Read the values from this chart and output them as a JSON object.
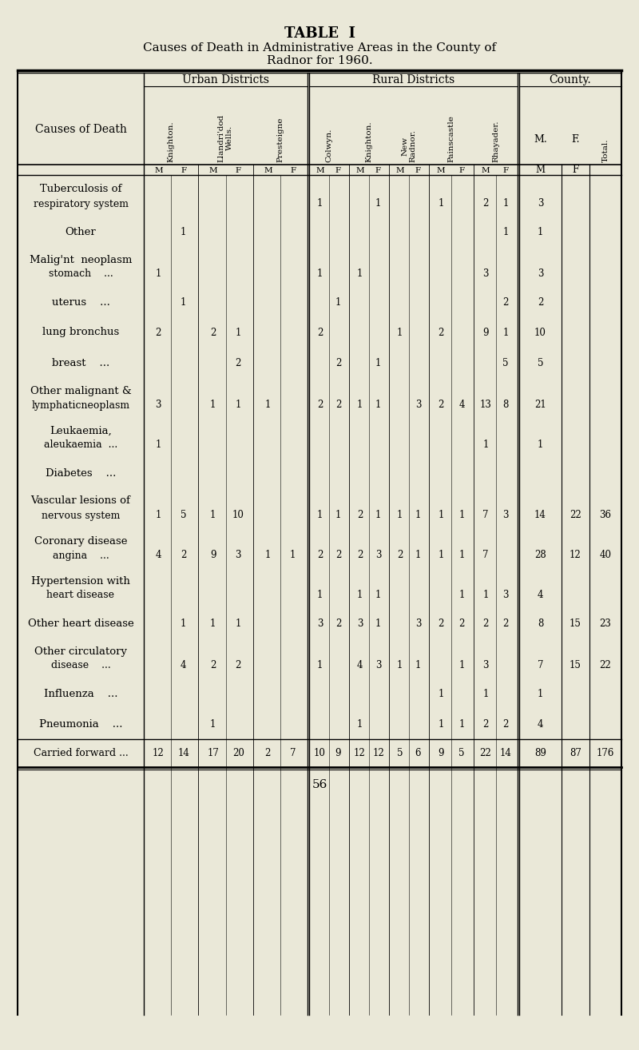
{
  "title_line1": "TABLE  I",
  "title_line2": "Causes of Death in Administrative Areas in the County of",
  "title_line3": "Radnor for 1960.",
  "bg_color": "#eae8d8",
  "rows": [
    {
      "label1": "Tuberculosis of",
      "label2": "respiratory system",
      "data": [
        "",
        "",
        "",
        "",
        "",
        "",
        "1",
        "",
        "",
        "1",
        "",
        "",
        "1",
        "",
        "2",
        "1",
        "3"
      ]
    },
    {
      "label1": "Other",
      "label2": "",
      "data": [
        "",
        "1",
        "",
        "",
        "",
        "",
        "",
        "",
        "",
        "",
        "",
        "",
        "",
        "",
        "",
        "1",
        "1"
      ]
    },
    {
      "label1": "Malig'nt  neoplasm",
      "label2": "stomach    ...",
      "data": [
        "1",
        "",
        "",
        "",
        "",
        "",
        "1",
        "",
        "1",
        "",
        "",
        "",
        "",
        "",
        "3",
        "",
        "3"
      ]
    },
    {
      "label1": "uterus    ...",
      "label2": "",
      "data": [
        "",
        "1",
        "",
        "",
        "",
        "",
        "",
        "1",
        "",
        "",
        "",
        "",
        "",
        "",
        "",
        "2",
        "2"
      ]
    },
    {
      "label1": "lung bronchus",
      "label2": "",
      "data": [
        "2",
        "",
        "2",
        "1",
        "",
        "",
        "2",
        "",
        "",
        "",
        "1",
        "",
        "2",
        "",
        "9",
        "1",
        "10"
      ]
    },
    {
      "label1": "breast    ...",
      "label2": "",
      "data": [
        "",
        "",
        "",
        "2",
        "",
        "",
        "",
        "2",
        "",
        "1",
        "",
        "",
        "",
        "",
        "",
        "5",
        "5"
      ]
    },
    {
      "label1": "Other malignant &",
      "label2": "lymphaticneoplasm",
      "data": [
        "3",
        "",
        "1",
        "1",
        "1",
        "",
        "2",
        "2",
        "1",
        "1",
        "",
        "3",
        "2",
        "4",
        "13",
        "8",
        "21"
      ]
    },
    {
      "label1": "Leukaemia,",
      "label2": "aleukaemia  ...",
      "data": [
        "1",
        "",
        "",
        "",
        "",
        "",
        "",
        "",
        "",
        "",
        "",
        "",
        "",
        "",
        "1",
        "",
        "1"
      ]
    },
    {
      "label1": "Diabetes    ...",
      "label2": "",
      "data": [
        "",
        "",
        "",
        "",
        "",
        "",
        "",
        "",
        "",
        "",
        "",
        "",
        "",
        "",
        "",
        "",
        ""
      ]
    },
    {
      "label1": "Vascular lesions of",
      "label2": "nervous system",
      "data": [
        "1",
        "5",
        "1",
        "10",
        "",
        "",
        "1",
        "1",
        "2",
        "1",
        "1",
        "1",
        "1",
        "1",
        "7",
        "3",
        "14",
        "22",
        "36"
      ]
    },
    {
      "label1": "Coronary disease",
      "label2": "angina    ...",
      "data": [
        "4",
        "2",
        "9",
        "3",
        "1",
        "1",
        "2",
        "2",
        "2",
        "3",
        "2",
        "1",
        "1",
        "1",
        "7",
        "",
        "28",
        "12",
        "40"
      ]
    },
    {
      "label1": "Hypertension with",
      "label2": "heart disease",
      "data": [
        "",
        "",
        "",
        "",
        "",
        "",
        "1",
        "",
        "1",
        "1",
        "",
        "",
        "",
        "1",
        "1",
        "3",
        "4"
      ]
    },
    {
      "label1": "Other heart disease",
      "label2": "",
      "data": [
        "",
        "1",
        "1",
        "1",
        "",
        "",
        "3",
        "2",
        "3",
        "1",
        "",
        "3",
        "2",
        "2",
        "2",
        "2",
        "8",
        "15",
        "23"
      ]
    },
    {
      "label1": "Other circulatory",
      "label2": "disease    ...",
      "data": [
        "",
        "4",
        "2",
        "2",
        "",
        "",
        "1",
        "",
        "4",
        "3",
        "1",
        "1",
        "",
        "1",
        "3",
        "",
        "7",
        "15",
        "22"
      ]
    },
    {
      "label1": "Influenza    ...",
      "label2": "",
      "data": [
        "",
        "",
        "",
        "",
        "",
        "",
        "",
        "",
        "",
        "",
        "",
        "",
        "1",
        "",
        "1",
        "",
        "1"
      ]
    },
    {
      "label1": "Pneumonia    ...",
      "label2": "",
      "data": [
        "",
        "",
        "1",
        "",
        "",
        "",
        "",
        "",
        "1",
        "",
        "",
        "",
        "1",
        "1",
        "2",
        "2",
        "4"
      ]
    }
  ],
  "footer_label": "Carried forward ...",
  "footer_values": [
    "12",
    "14",
    "17",
    "20",
    "2",
    "7",
    "10",
    "9",
    "12",
    "12",
    "5",
    "6",
    "9",
    "5",
    "22",
    "14",
    "89",
    "87",
    "176"
  ],
  "page_number": "56",
  "col_names_urban": [
    "Knighton.",
    "Llandri'dod\nWells.",
    "Presteigne"
  ],
  "col_names_rural": [
    "Colwyn.",
    "Knighton.",
    "New\nRadnor.",
    "Painscastle",
    "Rhayader."
  ],
  "col_names_county": [
    "M.",
    "F.",
    "Total."
  ]
}
